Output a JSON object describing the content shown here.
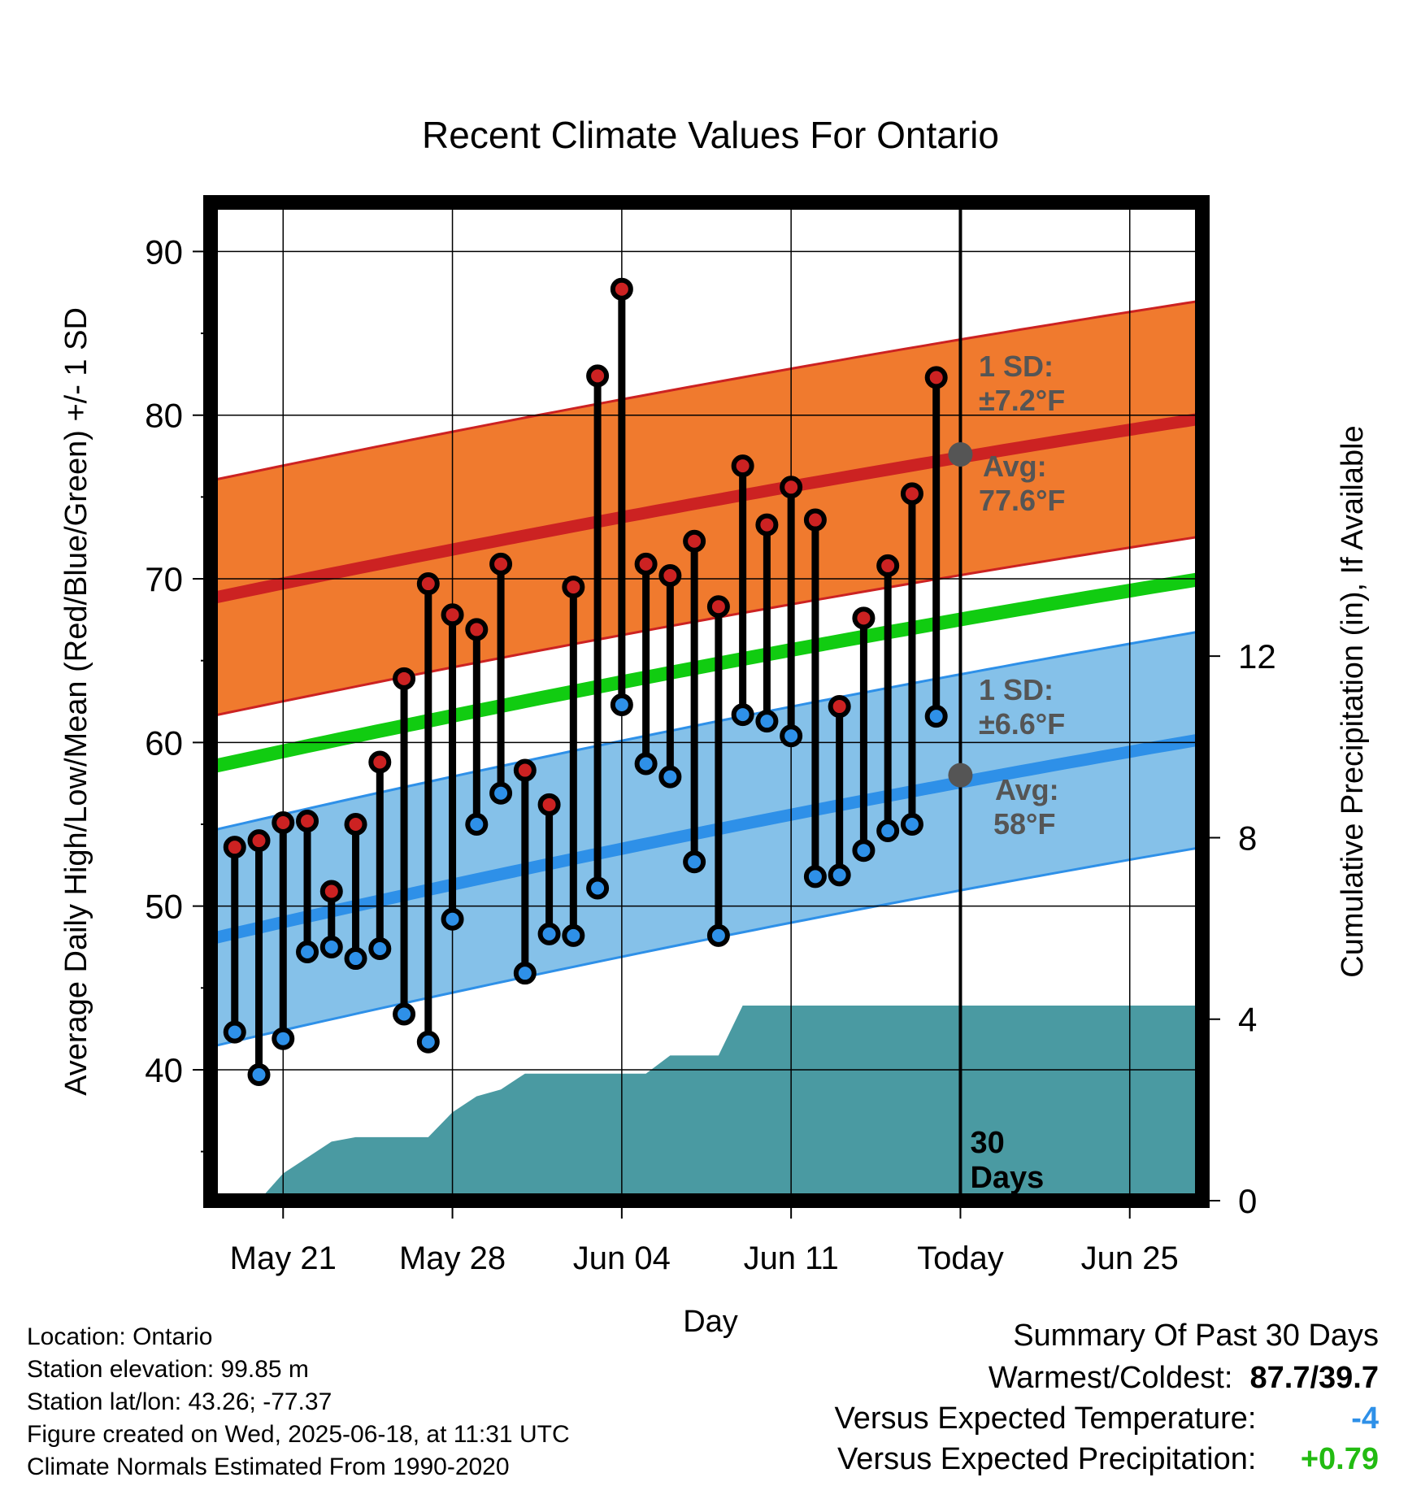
{
  "title": "Recent Climate Values For Ontario",
  "chart_data": {
    "type": "line",
    "title": "Recent Climate Values For Ontario",
    "xlabel": "Day",
    "ylabel": "Average Daily High/Low/Mean (Red/Blue/Green) +/- 1 SD",
    "y2label": "Cumulative Precipitation (in), If Available",
    "ylim": [
      32,
      93
    ],
    "y2lim": [
      0,
      22
    ],
    "xlim": [
      "2025-05-18",
      "2025-06-28"
    ],
    "yticks": [
      40,
      50,
      60,
      70,
      80,
      90
    ],
    "y2ticks": [
      0,
      4,
      8,
      12
    ],
    "xtick_labels": [
      {
        "date": "2025-05-21",
        "label": "May 21"
      },
      {
        "date": "2025-05-28",
        "label": "May 28"
      },
      {
        "date": "2025-06-04",
        "label": "Jun 04"
      },
      {
        "date": "2025-06-11",
        "label": "Jun 11"
      },
      {
        "date": "2025-06-18",
        "label": "Today"
      },
      {
        "date": "2025-06-25",
        "label": "Jun 25"
      }
    ],
    "today": "2025-06-18",
    "today_label": "30 Days",
    "normal_high": {
      "start": 68.8,
      "end": 79.8,
      "sd": 7.2
    },
    "normal_low": {
      "start": 48.0,
      "end": 60.2,
      "sd": 6.6
    },
    "normal_mean": {
      "start": 58.5,
      "end": 70.0
    },
    "high_label": {
      "sd_label": "1 SD:",
      "sd_value": "±7.2°F",
      "avg_label": "Avg:",
      "avg_value": "77.6°F",
      "avg": 77.6
    },
    "low_label": {
      "sd_label": "1 SD:",
      "sd_value": "±6.6°F",
      "avg_label": "Avg:",
      "avg_value": "58°F",
      "avg": 58.0
    },
    "dates": [
      "2025-05-19",
      "2025-05-20",
      "2025-05-21",
      "2025-05-22",
      "2025-05-23",
      "2025-05-24",
      "2025-05-25",
      "2025-05-26",
      "2025-05-27",
      "2025-05-28",
      "2025-05-29",
      "2025-05-30",
      "2025-05-31",
      "2025-06-01",
      "2025-06-02",
      "2025-06-03",
      "2025-06-04",
      "2025-06-05",
      "2025-06-06",
      "2025-06-07",
      "2025-06-08",
      "2025-06-09",
      "2025-06-10",
      "2025-06-11",
      "2025-06-12",
      "2025-06-13",
      "2025-06-14",
      "2025-06-15",
      "2025-06-16",
      "2025-06-17"
    ],
    "series": [
      {
        "name": "High",
        "color": "#cc2222",
        "values": [
          53.6,
          54.0,
          55.1,
          55.2,
          50.9,
          55.0,
          58.8,
          63.9,
          69.7,
          67.8,
          66.9,
          70.9,
          58.3,
          56.2,
          69.5,
          82.4,
          87.7,
          70.9,
          70.2,
          72.3,
          68.3,
          76.9,
          73.3,
          75.6,
          73.6,
          62.2,
          67.6,
          70.8,
          75.2,
          82.3
        ]
      },
      {
        "name": "Low",
        "color": "#2e90e8",
        "values": [
          42.3,
          39.7,
          41.9,
          47.2,
          47.5,
          46.8,
          47.4,
          43.4,
          41.7,
          49.2,
          55.0,
          56.9,
          45.9,
          48.3,
          48.2,
          51.1,
          62.3,
          58.7,
          57.9,
          52.7,
          48.2,
          61.7,
          61.3,
          60.4,
          51.8,
          51.9,
          53.4,
          54.6,
          55.0,
          61.6
        ]
      }
    ],
    "precipitation": {
      "x": [
        "2025-05-18",
        "2025-05-20",
        "2025-05-21",
        "2025-05-22",
        "2025-05-23",
        "2025-05-24",
        "2025-05-26",
        "2025-05-27",
        "2025-05-28",
        "2025-05-29",
        "2025-05-30",
        "2025-05-31",
        "2025-06-01",
        "2025-06-05",
        "2025-06-06",
        "2025-06-08",
        "2025-06-09",
        "2025-06-28"
      ],
      "values": [
        0.0,
        0.0,
        0.6,
        0.95,
        1.3,
        1.4,
        1.4,
        1.4,
        1.95,
        2.3,
        2.45,
        2.8,
        2.8,
        2.8,
        3.2,
        3.2,
        4.3,
        4.3
      ]
    }
  },
  "info": {
    "location": "Location: Ontario",
    "elevation": "Station elevation: 99.85 m",
    "latlon": "Station lat/lon: 43.26; -77.37",
    "created": "Figure created on Wed, 2025-06-18, at 11:31 UTC",
    "normals": "Climate Normals Estimated From 1990-2020"
  },
  "summary": {
    "heading": "Summary Of Past 30 Days",
    "warmest_label": "Warmest/Coldest:",
    "warmest_value": "87.7/39.7",
    "temp_label": "Versus Expected Temperature:",
    "temp_value": "-4",
    "temp_color": "#2e90e8",
    "precip_label": "Versus Expected Precipitation:",
    "precip_value": "+0.79",
    "precip_color": "#22bb11"
  },
  "colors": {
    "high_band": "#f07a2e",
    "high_line": "#cc2222",
    "low_band": "#85c1e9",
    "low_line": "#2e90e8",
    "mean_line": "#11cc11",
    "precip_fill": "#4a9aa2",
    "label_gray": "#555555"
  }
}
